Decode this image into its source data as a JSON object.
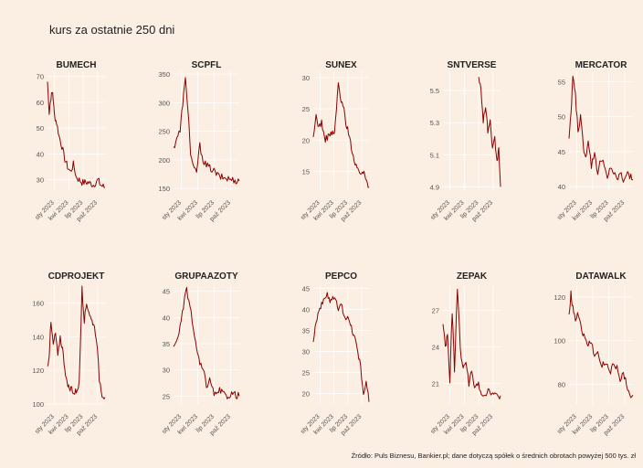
{
  "title": "kurs za ostatnie 250 dni",
  "caption": "Źródło: Puls Biznesu, Bankier.pl; dane dotyczą spółek o średnich obrotach powyżej 500 tys. zł",
  "colors": {
    "background": "#fbeee2",
    "line": "#8b0000",
    "grid": "#ffffff"
  },
  "chart_data": [
    {
      "type": "line",
      "title": "BUMECH",
      "yticks": [
        30,
        40,
        50,
        60,
        70
      ],
      "ylim": [
        26,
        72
      ],
      "xticks": [
        "sty 2023",
        "kwi 2023",
        "lip 2023",
        "paź 2023"
      ],
      "keypoints": [
        [
          0,
          68
        ],
        [
          0.03,
          56
        ],
        [
          0.06,
          62
        ],
        [
          0.09,
          64
        ],
        [
          0.12,
          55
        ],
        [
          0.16,
          52
        ],
        [
          0.2,
          47
        ],
        [
          0.25,
          43
        ],
        [
          0.3,
          38
        ],
        [
          0.35,
          35
        ],
        [
          0.4,
          33
        ],
        [
          0.45,
          36
        ],
        [
          0.5,
          31
        ],
        [
          0.55,
          30
        ],
        [
          0.6,
          29
        ],
        [
          0.7,
          29
        ],
        [
          0.8,
          28
        ],
        [
          0.88,
          30
        ],
        [
          0.92,
          28
        ],
        [
          1,
          27
        ]
      ]
    },
    {
      "type": "line",
      "title": "SCPFL",
      "yticks": [
        150,
        200,
        250,
        300,
        350
      ],
      "ylim": [
        147,
        355
      ],
      "xticks": [
        "sty 2023",
        "kwi 2023",
        "lip 2023",
        "paź 2023"
      ],
      "keypoints": [
        [
          0,
          220
        ],
        [
          0.05,
          240
        ],
        [
          0.1,
          250
        ],
        [
          0.14,
          300
        ],
        [
          0.18,
          340
        ],
        [
          0.22,
          290
        ],
        [
          0.26,
          210
        ],
        [
          0.3,
          185
        ],
        [
          0.35,
          180
        ],
        [
          0.4,
          225
        ],
        [
          0.45,
          200
        ],
        [
          0.5,
          190
        ],
        [
          0.6,
          182
        ],
        [
          0.7,
          170
        ],
        [
          0.8,
          168
        ],
        [
          0.9,
          165
        ],
        [
          1,
          163
        ]
      ]
    },
    {
      "type": "line",
      "title": "SUNEX",
      "yticks": [
        15,
        20,
        25,
        30
      ],
      "ylim": [
        12,
        31
      ],
      "xticks": [
        "sty 2023",
        "kwi 2023",
        "lip 2023",
        "paź 2023"
      ],
      "keypoints": [
        [
          0,
          20
        ],
        [
          0.05,
          24
        ],
        [
          0.1,
          22
        ],
        [
          0.15,
          23
        ],
        [
          0.2,
          20
        ],
        [
          0.3,
          21
        ],
        [
          0.38,
          21
        ],
        [
          0.45,
          29
        ],
        [
          0.5,
          26
        ],
        [
          0.55,
          25
        ],
        [
          0.6,
          22
        ],
        [
          0.65,
          21
        ],
        [
          0.7,
          18
        ],
        [
          0.75,
          16
        ],
        [
          0.8,
          15
        ],
        [
          0.88,
          15
        ],
        [
          0.94,
          14
        ],
        [
          1,
          12.5
        ]
      ]
    },
    {
      "type": "line",
      "title": "SNTVERSE",
      "yticks": [
        4.9,
        5.1,
        5.3,
        5.5
      ],
      "ytick_labels": [
        "4.9",
        "5.1",
        "5.3",
        "5.5"
      ],
      "ylim": [
        4.88,
        5.62
      ],
      "xticks": [
        "sty 2023",
        "kwi 2023",
        "lip 2023",
        "paź 2023"
      ],
      "xrange": [
        0.62,
        1.0
      ],
      "keypoints": [
        [
          0.62,
          5.6
        ],
        [
          0.66,
          5.5
        ],
        [
          0.7,
          5.32
        ],
        [
          0.74,
          5.4
        ],
        [
          0.78,
          5.25
        ],
        [
          0.82,
          5.3
        ],
        [
          0.86,
          5.12
        ],
        [
          0.9,
          5.2
        ],
        [
          0.94,
          5.05
        ],
        [
          0.97,
          5.15
        ],
        [
          1,
          4.9
        ]
      ]
    },
    {
      "type": "line",
      "title": "MERCATOR",
      "yticks": [
        40,
        45,
        50,
        55
      ],
      "ylim": [
        39.5,
        56.5
      ],
      "xticks": [
        "sty 2023",
        "kwi 2023",
        "lip 2023",
        "paź 2023"
      ],
      "keypoints": [
        [
          0,
          47
        ],
        [
          0.03,
          50
        ],
        [
          0.06,
          56
        ],
        [
          0.1,
          53
        ],
        [
          0.14,
          48
        ],
        [
          0.18,
          50
        ],
        [
          0.22,
          46
        ],
        [
          0.26,
          44
        ],
        [
          0.3,
          47
        ],
        [
          0.35,
          43
        ],
        [
          0.4,
          45
        ],
        [
          0.45,
          42
        ],
        [
          0.5,
          44
        ],
        [
          0.55,
          43
        ],
        [
          0.6,
          41
        ],
        [
          0.65,
          43
        ],
        [
          0.7,
          42
        ],
        [
          0.75,
          41
        ],
        [
          0.8,
          42
        ],
        [
          0.85,
          41
        ],
        [
          0.9,
          42
        ],
        [
          1,
          41
        ]
      ]
    },
    {
      "type": "line",
      "title": "CDPROJEKT",
      "yticks": [
        100,
        120,
        140,
        160
      ],
      "ylim": [
        100,
        170
      ],
      "xticks": [
        "sty 2023",
        "kwi 2023",
        "lip 2023",
        "paź 2023"
      ],
      "keypoints": [
        [
          0,
          122
        ],
        [
          0.03,
          130
        ],
        [
          0.06,
          148
        ],
        [
          0.1,
          135
        ],
        [
          0.14,
          142
        ],
        [
          0.18,
          128
        ],
        [
          0.22,
          140
        ],
        [
          0.26,
          133
        ],
        [
          0.3,
          122
        ],
        [
          0.34,
          112
        ],
        [
          0.38,
          108
        ],
        [
          0.42,
          110
        ],
        [
          0.46,
          106
        ],
        [
          0.5,
          108
        ],
        [
          0.55,
          112
        ],
        [
          0.6,
          168
        ],
        [
          0.64,
          150
        ],
        [
          0.68,
          160
        ],
        [
          0.72,
          155
        ],
        [
          0.76,
          150
        ],
        [
          0.8,
          148
        ],
        [
          0.85,
          140
        ],
        [
          0.9,
          115
        ],
        [
          0.95,
          106
        ],
        [
          1,
          104
        ]
      ]
    },
    {
      "type": "line",
      "title": "GRUPAAZOTY",
      "yticks": [
        25,
        30,
        35,
        40,
        45
      ],
      "ylim": [
        23.5,
        46
      ],
      "xticks": [
        "sty 2023",
        "kwi 2023",
        "lip 2023",
        "paź 2023"
      ],
      "keypoints": [
        [
          0,
          34
        ],
        [
          0.05,
          36
        ],
        [
          0.1,
          38
        ],
        [
          0.15,
          42
        ],
        [
          0.2,
          45.5
        ],
        [
          0.25,
          42
        ],
        [
          0.3,
          38
        ],
        [
          0.35,
          34
        ],
        [
          0.4,
          31
        ],
        [
          0.45,
          30
        ],
        [
          0.5,
          27
        ],
        [
          0.55,
          28
        ],
        [
          0.6,
          26
        ],
        [
          0.65,
          25
        ],
        [
          0.7,
          26
        ],
        [
          0.8,
          25
        ],
        [
          0.9,
          25.5
        ],
        [
          1,
          25
        ]
      ]
    },
    {
      "type": "line",
      "title": "PEPCO",
      "yticks": [
        20,
        25,
        30,
        35,
        40,
        45
      ],
      "ylim": [
        17.5,
        45.5
      ],
      "xticks": [
        "sty 2023",
        "kwi 2023",
        "lip 2023",
        "paź 2023"
      ],
      "keypoints": [
        [
          0,
          33
        ],
        [
          0.05,
          37
        ],
        [
          0.1,
          40
        ],
        [
          0.15,
          41
        ],
        [
          0.2,
          42
        ],
        [
          0.25,
          44
        ],
        [
          0.3,
          42
        ],
        [
          0.35,
          43
        ],
        [
          0.4,
          42
        ],
        [
          0.45,
          40
        ],
        [
          0.5,
          41
        ],
        [
          0.55,
          39
        ],
        [
          0.6,
          38
        ],
        [
          0.65,
          37
        ],
        [
          0.7,
          35
        ],
        [
          0.75,
          33
        ],
        [
          0.8,
          30
        ],
        [
          0.85,
          26
        ],
        [
          0.9,
          20
        ],
        [
          0.95,
          23
        ],
        [
          1,
          18
        ]
      ]
    },
    {
      "type": "line",
      "title": "ZEPAK",
      "yticks": [
        21,
        24,
        27
      ],
      "ylim": [
        19.3,
        29
      ],
      "xticks": [
        "sty 2023",
        "kwi 2023",
        "lip 2023",
        "paź 2023"
      ],
      "keypoints": [
        [
          0,
          26
        ],
        [
          0.04,
          24
        ],
        [
          0.08,
          25
        ],
        [
          0.12,
          21
        ],
        [
          0.16,
          27
        ],
        [
          0.2,
          22
        ],
        [
          0.25,
          29
        ],
        [
          0.3,
          24
        ],
        [
          0.35,
          22
        ],
        [
          0.4,
          23
        ],
        [
          0.45,
          21
        ],
        [
          0.5,
          22
        ],
        [
          0.55,
          20.5
        ],
        [
          0.6,
          21
        ],
        [
          0.7,
          20
        ],
        [
          0.8,
          20.5
        ],
        [
          0.9,
          20
        ],
        [
          1,
          20
        ]
      ]
    },
    {
      "type": "line",
      "title": "DATAWALK",
      "yticks": [
        80,
        100,
        120
      ],
      "ylim": [
        71,
        125
      ],
      "xticks": [
        "sty 2023",
        "kwi 2023",
        "lip 2023",
        "paź 2023"
      ],
      "keypoints": [
        [
          0,
          112
        ],
        [
          0.03,
          122
        ],
        [
          0.06,
          115
        ],
        [
          0.1,
          110
        ],
        [
          0.15,
          112
        ],
        [
          0.2,
          105
        ],
        [
          0.25,
          100
        ],
        [
          0.3,
          98
        ],
        [
          0.35,
          100
        ],
        [
          0.4,
          92
        ],
        [
          0.45,
          95
        ],
        [
          0.5,
          88
        ],
        [
          0.55,
          90
        ],
        [
          0.6,
          88
        ],
        [
          0.65,
          85
        ],
        [
          0.7,
          90
        ],
        [
          0.75,
          88
        ],
        [
          0.8,
          82
        ],
        [
          0.85,
          86
        ],
        [
          0.9,
          80
        ],
        [
          0.95,
          75
        ],
        [
          1,
          75
        ]
      ]
    }
  ]
}
